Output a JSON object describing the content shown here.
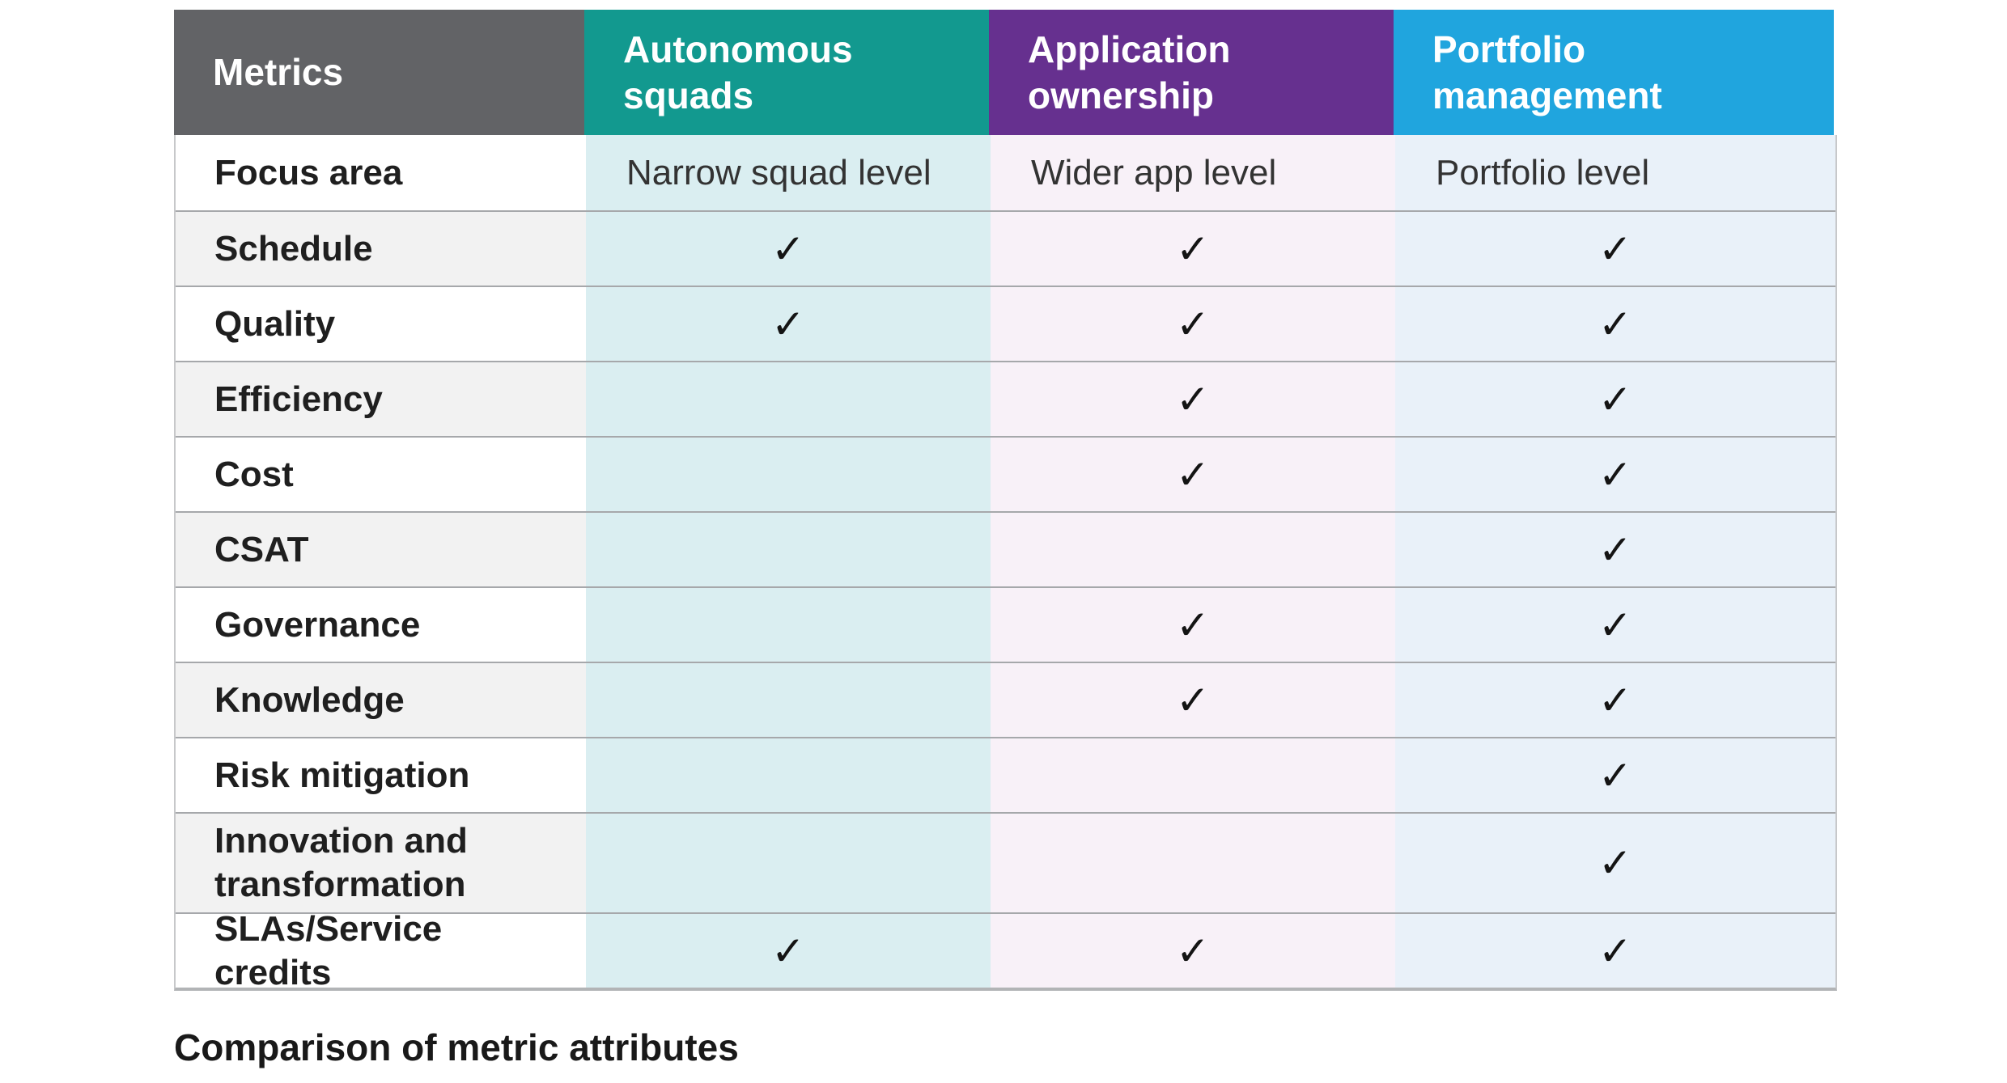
{
  "colors": {
    "header_metrics_bg": "#626366",
    "header_teal_bg": "#12998f",
    "header_purple_bg": "#66308f",
    "header_blue_bg": "#20a5de",
    "tint_teal": "#daeef1",
    "tint_lavender": "#f8f1f8",
    "tint_blue": "#e9f1f9",
    "alt_row": "#f2f2f2",
    "check_color": "#141414"
  },
  "table": {
    "columns": [
      {
        "label": "Metrics"
      },
      {
        "label": "Autonomous squads"
      },
      {
        "label": "Application ownership"
      },
      {
        "label": "Portfolio management"
      }
    ],
    "check_glyph": "✓",
    "rows": [
      {
        "label": "Focus area",
        "cells": [
          "Narrow squad level",
          "Wider app level",
          "Portfolio level"
        ]
      },
      {
        "label": "Schedule",
        "cells": [
          "✓",
          "✓",
          "✓"
        ]
      },
      {
        "label": "Quality",
        "cells": [
          "✓",
          "✓",
          "✓"
        ]
      },
      {
        "label": "Efficiency",
        "cells": [
          "",
          "✓",
          "✓"
        ]
      },
      {
        "label": "Cost",
        "cells": [
          "",
          "✓",
          "✓"
        ]
      },
      {
        "label": "CSAT",
        "cells": [
          "",
          "",
          "✓"
        ]
      },
      {
        "label": "Governance",
        "cells": [
          "",
          "✓",
          "✓"
        ]
      },
      {
        "label": "Knowledge",
        "cells": [
          "",
          "✓",
          "✓"
        ]
      },
      {
        "label": "Risk mitigation",
        "cells": [
          "",
          "",
          "✓"
        ]
      },
      {
        "label": "Innovation and transformation",
        "cells": [
          "",
          "",
          "✓"
        ]
      },
      {
        "label": "SLAs/Service credits",
        "cells": [
          "✓",
          "✓",
          "✓"
        ]
      }
    ]
  },
  "caption": "Comparison of metric attributes",
  "chart_data": {
    "type": "table",
    "title": "Comparison of metric attributes",
    "columns": [
      "Metrics",
      "Autonomous squads",
      "Application ownership",
      "Portfolio management"
    ],
    "rows": [
      [
        "Focus area",
        "Narrow squad level",
        "Wider app level",
        "Portfolio level"
      ],
      [
        "Schedule",
        true,
        true,
        true
      ],
      [
        "Quality",
        true,
        true,
        true
      ],
      [
        "Efficiency",
        false,
        true,
        true
      ],
      [
        "Cost",
        false,
        true,
        true
      ],
      [
        "CSAT",
        false,
        false,
        true
      ],
      [
        "Governance",
        false,
        true,
        true
      ],
      [
        "Knowledge",
        false,
        true,
        true
      ],
      [
        "Risk mitigation",
        false,
        false,
        true
      ],
      [
        "Innovation and transformation",
        false,
        false,
        true
      ],
      [
        "SLAs/Service credits",
        true,
        true,
        true
      ]
    ]
  }
}
